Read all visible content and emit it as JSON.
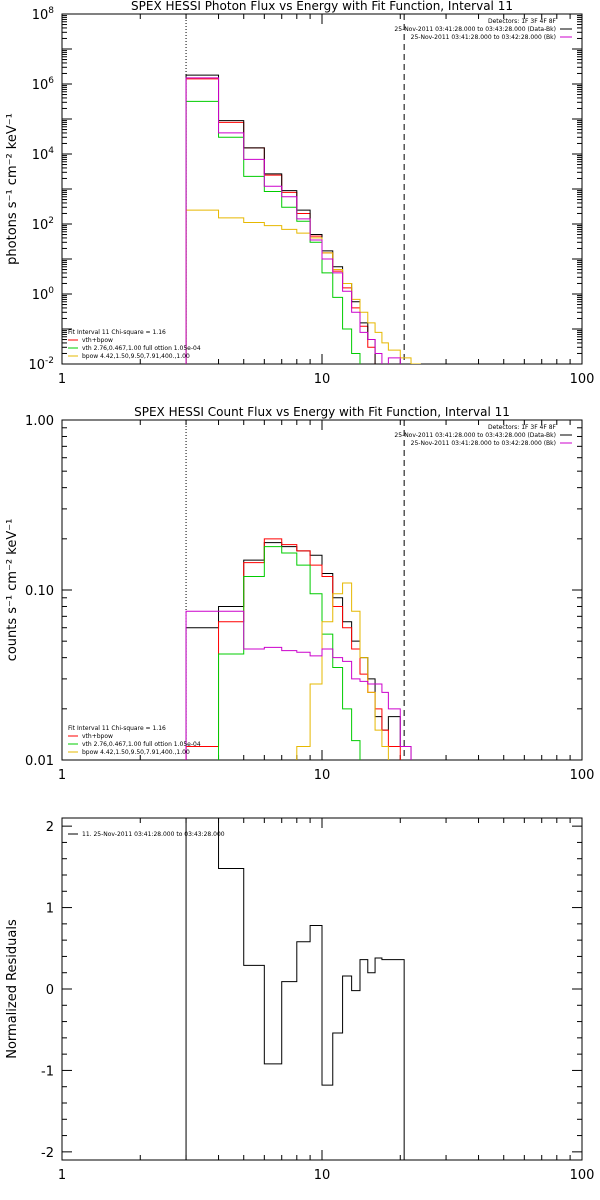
{
  "colors": {
    "background": "#ffffff",
    "axes": "#000000",
    "data": "#000000",
    "total": "#ff0000",
    "thermal": "#00cc00",
    "powerlaw": "#e6b800",
    "background_model": "#cc00cc"
  },
  "figure": {
    "xlim": [
      1,
      100
    ],
    "x_ticks": [
      "1",
      "10",
      "100"
    ]
  },
  "chart_data": [
    {
      "type": "line",
      "step": true,
      "yscale": "log",
      "title": "SPEX HESSI Photon Flux vs Energy with Fit Function, Interval 11",
      "ylabel": "photons s⁻¹ cm⁻² keV⁻¹",
      "xlabel": "",
      "xlim": [
        1,
        100
      ],
      "ylim": [
        0.01,
        100000000
      ],
      "y_ticks": [
        {
          "v": 0.01,
          "base": "10",
          "exp": "-2"
        },
        {
          "v": 1,
          "base": "10",
          "exp": "0"
        },
        {
          "v": 100,
          "base": "10",
          "exp": "2"
        },
        {
          "v": 10000,
          "base": "10",
          "exp": "4"
        },
        {
          "v": 1000000,
          "base": "10",
          "exp": "6"
        },
        {
          "v": 100000000,
          "base": "10",
          "exp": "8"
        }
      ],
      "fit_range": [
        3.0,
        20.7
      ],
      "header": [
        {
          "text": "Detectors: 1F 3F 4F 8F",
          "color": "#000000"
        },
        {
          "text": "25-Nov-2011 03:41:28.000 to 03:43:28.000 (Data-Bk)",
          "color": "#000000"
        },
        {
          "text": "25-Nov-2011 03:41:28.000 to 03:42:28.000 (Bk)",
          "color": "#cc00cc"
        }
      ],
      "legend_loc": "bottom-left",
      "legend": [
        {
          "text": "Fit Interval 11   Chi-square = 1.16",
          "color": "#000000"
        },
        {
          "text": "vth+bpow",
          "color": "#ff0000"
        },
        {
          "text": "vth 2.76,0.467,1.00  full ottion 1.05e-04",
          "color": "#00cc00"
        },
        {
          "text": "bpow 4.42,1.50,9.50,7.91,400.,1.00",
          "color": "#e6b800"
        }
      ],
      "edges": [
        3,
        4,
        5,
        6,
        7,
        8,
        9,
        10,
        11,
        12,
        13,
        14,
        15,
        16,
        17,
        18,
        20,
        22,
        24
      ],
      "series": [
        {
          "color": "#ff0000",
          "values": [
            1400000,
            80000,
            15000,
            2500,
            800,
            200,
            45,
            15,
            4.5,
            1.5,
            0.4,
            0.12,
            0.03,
            null,
            null,
            null,
            null,
            null
          ]
        },
        {
          "color": "#000000",
          "values": [
            1800000,
            90000,
            15000,
            2700,
            900,
            250,
            50,
            17,
            6,
            2,
            0.6,
            0.15,
            0.05,
            null,
            null,
            null,
            null,
            null
          ]
        },
        {
          "color": "#00cc00",
          "values": [
            320000,
            30000,
            2300,
            850,
            300,
            120,
            30,
            4,
            0.8,
            0.1,
            0.02,
            null,
            null,
            null,
            null,
            null,
            null,
            null
          ]
        },
        {
          "color": "#e6b800",
          "values": [
            250,
            150,
            110,
            90,
            70,
            55,
            40,
            15,
            5,
            2,
            0.7,
            0.3,
            0.15,
            0.08,
            0.04,
            0.025,
            0.015,
            0.008
          ]
        },
        {
          "color": "#cc00cc",
          "values": [
            1500000,
            40000,
            7000,
            1200,
            600,
            140,
            35,
            10,
            4,
            1.2,
            0.3,
            0.08,
            0.05,
            0.02,
            null,
            0.015,
            null,
            null
          ]
        }
      ]
    },
    {
      "type": "line",
      "step": true,
      "yscale": "log",
      "title": "SPEX HESSI Count Flux vs Energy with Fit Function, Interval 11",
      "ylabel": "counts s⁻¹ cm⁻² keV⁻¹",
      "xlabel": "",
      "xlim": [
        1,
        100
      ],
      "ylim": [
        0.01,
        1.0
      ],
      "y_ticks": [
        {
          "v": 0.01,
          "text": "0.01"
        },
        {
          "v": 0.1,
          "text": "0.10"
        },
        {
          "v": 1.0,
          "text": "1.00"
        }
      ],
      "fit_range": [
        3.0,
        20.7
      ],
      "header": [
        {
          "text": "Detectors: 1F 3F 4F 8F",
          "color": "#000000"
        },
        {
          "text": "25-Nov-2011 03:41:28.000 to 03:43:28.000 (Data-Bk)",
          "color": "#000000"
        },
        {
          "text": "25-Nov-2011 03:41:28.000 to 03:42:28.000 (Bk)",
          "color": "#cc00cc"
        }
      ],
      "legend_loc": "bottom-left",
      "legend": [
        {
          "text": "Fit Interval 11   Chi-square = 1.16",
          "color": "#000000"
        },
        {
          "text": "vth+bpow",
          "color": "#ff0000"
        },
        {
          "text": "vth 2.76,0.467,1.00  full ottion 1.05e-04",
          "color": "#00cc00"
        },
        {
          "text": "bpow 4.42,1.50,9.50,7.91,400.,1.00",
          "color": "#e6b800"
        }
      ],
      "edges": [
        3,
        4,
        5,
        6,
        7,
        8,
        9,
        10,
        11,
        12,
        13,
        14,
        15,
        16,
        17,
        18,
        20,
        22
      ],
      "series": [
        {
          "color": "#000000",
          "values": [
            0.06,
            0.08,
            0.15,
            0.19,
            0.18,
            0.17,
            0.16,
            0.125,
            0.09,
            0.065,
            0.05,
            0.04,
            0.03,
            0.018,
            0.015,
            0.018,
            0.012
          ]
        },
        {
          "color": "#ff0000",
          "values": [
            0.012,
            0.065,
            0.145,
            0.2,
            0.185,
            0.17,
            0.14,
            0.12,
            0.08,
            0.06,
            0.045,
            0.032,
            0.025,
            0.02,
            0.015,
            0.012,
            null
          ]
        },
        {
          "color": "#00cc00",
          "values": [
            null,
            0.042,
            0.12,
            0.18,
            0.165,
            0.14,
            0.095,
            0.055,
            0.035,
            0.02,
            0.013,
            null,
            null,
            null,
            null,
            null,
            null
          ]
        },
        {
          "color": "#e6b800",
          "values": [
            null,
            null,
            null,
            null,
            null,
            0.012,
            0.028,
            0.065,
            0.095,
            0.11,
            0.075,
            0.04,
            0.025,
            0.015,
            0.012,
            null,
            null
          ]
        },
        {
          "color": "#cc00cc",
          "values": [
            0.075,
            0.075,
            0.045,
            0.046,
            0.044,
            0.043,
            0.041,
            0.045,
            0.04,
            0.038,
            0.03,
            0.029,
            0.028,
            0.028,
            0.025,
            0.02,
            0.012
          ]
        }
      ]
    },
    {
      "type": "line",
      "step": true,
      "yscale": "linear",
      "title": "",
      "ylabel": "Normalized Residuals",
      "xlabel": "",
      "xlim": [
        1,
        100
      ],
      "ylim": [
        -2.1,
        2.1
      ],
      "y_ticks": [
        {
          "v": -2,
          "text": "-2"
        },
        {
          "v": -1,
          "text": "-1"
        },
        {
          "v": 0,
          "text": "0"
        },
        {
          "v": 1,
          "text": "1"
        },
        {
          "v": 2,
          "text": "2"
        }
      ],
      "header": [],
      "legend_loc": "top-left",
      "legend": [
        {
          "text": "11. 25-Nov-2011 03:41:28.000 to 03:43:28.000",
          "color": "#000000"
        }
      ],
      "edges": [
        3,
        4,
        5,
        6,
        7,
        8,
        9,
        10,
        11,
        12,
        13,
        14,
        15,
        16,
        17,
        18,
        20.7
      ],
      "closed": true,
      "series": [
        {
          "color": "#000000",
          "values": [
            2.1,
            1.48,
            0.29,
            -0.92,
            0.09,
            0.58,
            0.78,
            -1.18,
            -0.54,
            0.16,
            -0.02,
            0.36,
            0.2,
            0.38,
            0.36,
            0.36
          ]
        }
      ]
    }
  ]
}
